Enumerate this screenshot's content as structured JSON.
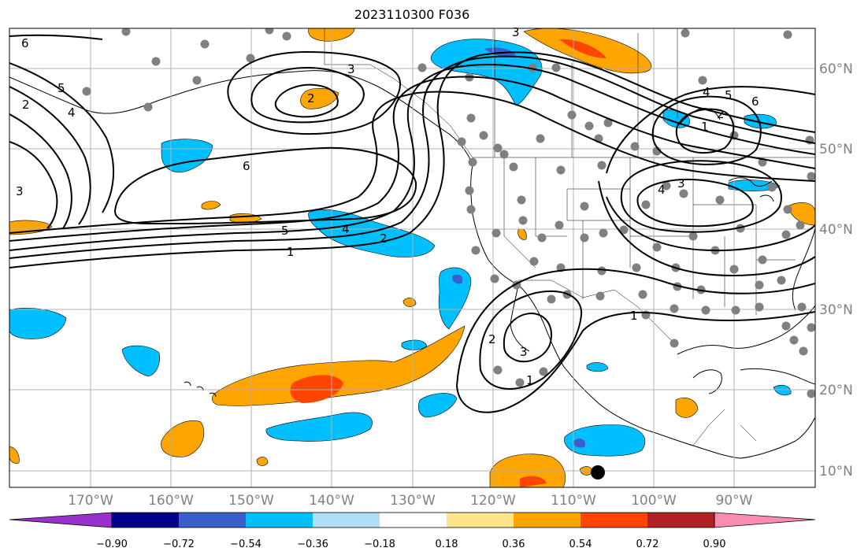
{
  "title": "2023110300 F036",
  "longitude_labels": [
    "170°W",
    "160°W",
    "150°W",
    "140°W",
    "130°W",
    "120°W",
    "110°W",
    "100°W",
    "90°W"
  ],
  "latitude_labels": [
    "60°N",
    "50°N",
    "40°N",
    "30°N",
    "20°N",
    "10°N"
  ],
  "colorbar": {
    "ticks": [
      "−0.90",
      "−0.72",
      "−0.54",
      "−0.36",
      "−0.18",
      "0.18",
      "0.36",
      "0.54",
      "0.72",
      "0.90"
    ],
    "colors": [
      "#9932CC",
      "#00008B",
      "#3A5FCD",
      "#00BFFF",
      "#B0E0F8",
      "#FFFFFF",
      "#FDE68A",
      "#FFA500",
      "#FF4500",
      "#B22222",
      "#F98CB0",
      "#F98CB0"
    ]
  },
  "contour_labels": [
    "6",
    "5",
    "4",
    "3",
    "2",
    "1",
    "2",
    "6",
    "3",
    "5",
    "4",
    "2",
    "1",
    "2",
    "3",
    "1",
    "1",
    "2",
    "4",
    "5",
    "6",
    "4",
    "3",
    "3"
  ],
  "colors": {
    "blue": "#00BFFF",
    "blue_dark": "#3A5FCD",
    "orange": "#FFA500",
    "red": "#FF4500",
    "grid": "#b0b0b0",
    "station": "#808080"
  },
  "marker": "black-dot"
}
